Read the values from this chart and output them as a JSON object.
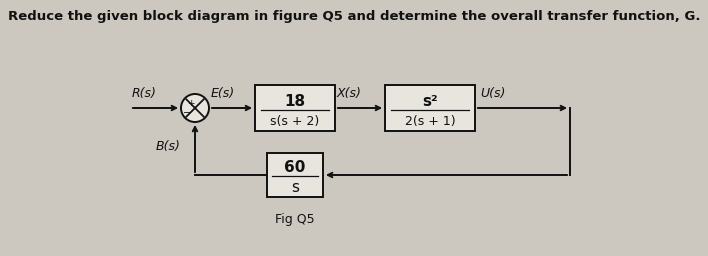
{
  "title": "Reduce the given block diagram in figure Q5 and determine the overall transfer function, G.",
  "title_fontsize": 9.5,
  "bg_color": "#ccc8c0",
  "block1_num": "18",
  "block1_den": "s(s + 2)",
  "block2_num": "s²",
  "block2_den": "2(s + 1)",
  "feedback_num": "60",
  "feedback_den": "s",
  "label_R": "R(s)",
  "label_E": "E(s)",
  "label_X": "X(s)",
  "label_U": "U(s)",
  "label_B": "B(s)",
  "label_fig": "Fig Q5",
  "line_color": "#111111",
  "box_facecolor": "#e8e4de",
  "text_color": "#111111",
  "lw": 1.4
}
